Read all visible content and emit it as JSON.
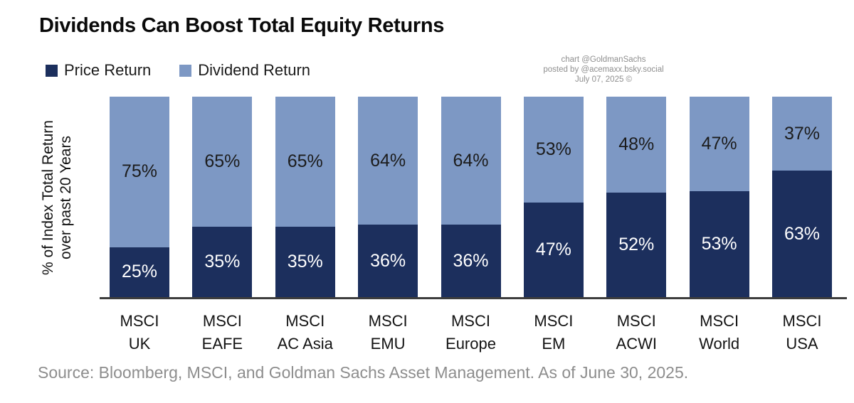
{
  "header": {
    "title": "Dividends Can Boost Total Equity Returns"
  },
  "attribution": {
    "line1": "chart @GoldmanSachs",
    "line2": "posted by @acemaxx.bsky.social",
    "line3": "July 07, 2025 ©"
  },
  "source": {
    "text": "Source: Bloomberg, MSCI, and Goldman Sachs Asset Management. As of June 30, 2025."
  },
  "chart_data": {
    "type": "bar",
    "stacked": true,
    "title": "Dividends Can Boost Total Equity Returns",
    "ylabel_line1": "% of Index Total Return",
    "ylabel_line2": "over past 20 Years",
    "ylim": [
      0,
      100
    ],
    "value_suffix": "%",
    "grid": false,
    "legend_position": "top-left",
    "categories": [
      "MSCI UK",
      "MSCI EAFE",
      "MSCI AC Asia",
      "MSCI EMU",
      "MSCI Europe",
      "MSCI EM",
      "MSCI ACWI",
      "MSCI World",
      "MSCI USA"
    ],
    "series": [
      {
        "name": "Price Return",
        "color": "#1c2f5d",
        "label_color": "#ffffff",
        "values": [
          25,
          35,
          35,
          36,
          36,
          47,
          52,
          53,
          63
        ]
      },
      {
        "name": "Dividend Return",
        "color": "#7d98c4",
        "label_color": "#1c1c1c",
        "values": [
          75,
          65,
          65,
          64,
          64,
          53,
          48,
          47,
          37
        ]
      }
    ],
    "axis_line_color": "#3d3d3d"
  }
}
